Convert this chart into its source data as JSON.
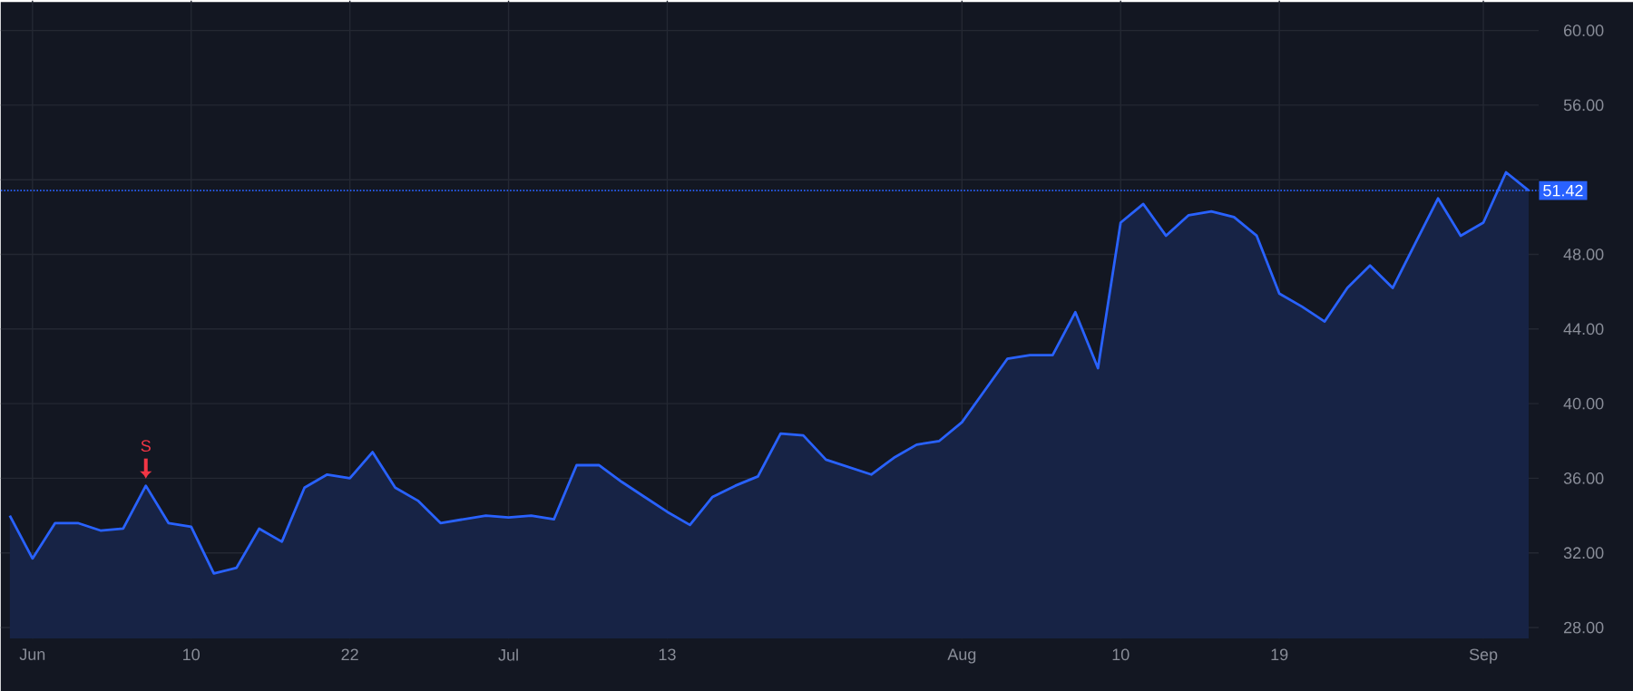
{
  "chart_data": {
    "type": "area",
    "categories": [
      null,
      "Jun",
      null,
      null,
      null,
      null,
      null,
      null,
      "10",
      null,
      null,
      null,
      null,
      null,
      null,
      "22",
      null,
      null,
      null,
      null,
      null,
      null,
      "Jul",
      null,
      null,
      null,
      null,
      null,
      null,
      "13",
      null,
      null,
      null,
      null,
      null,
      null,
      null,
      null,
      null,
      null,
      null,
      null,
      "Aug",
      null,
      null,
      null,
      null,
      null,
      null,
      "10",
      null,
      null,
      null,
      null,
      null,
      null,
      "19",
      null,
      null,
      null,
      null,
      null,
      null,
      null,
      null,
      "Sep",
      null,
      null
    ],
    "series": [
      {
        "color": "#2962ff",
        "values": [
          34.0,
          31.7,
          33.6,
          33.6,
          33.2,
          33.3,
          35.6,
          33.6,
          33.4,
          30.9,
          31.2,
          33.3,
          32.6,
          35.5,
          36.2,
          36.0,
          37.4,
          35.5,
          34.8,
          33.6,
          33.8,
          34.0,
          33.9,
          34.0,
          33.8,
          36.7,
          36.7,
          35.8,
          35.0,
          34.2,
          33.5,
          35.0,
          35.6,
          36.1,
          38.4,
          38.3,
          37.0,
          36.6,
          36.2,
          37.1,
          37.8,
          38.0,
          39.0,
          40.7,
          42.4,
          42.6,
          42.6,
          44.9,
          41.9,
          49.7,
          50.7,
          49.0,
          50.1,
          50.3,
          50.0,
          49.0,
          45.9,
          45.2,
          44.4,
          46.2,
          47.4,
          46.2,
          48.6,
          51.0,
          49.0,
          49.7,
          52.4,
          51.42
        ]
      }
    ],
    "ylim": [
      27.4,
      61.6
    ],
    "yticks": [
      {
        "value": 28,
        "label": "28.00"
      },
      {
        "value": 32,
        "label": "32.00"
      },
      {
        "value": 36,
        "label": "36.00"
      },
      {
        "value": 40,
        "label": "40.00"
      },
      {
        "value": 44,
        "label": "44.00"
      },
      {
        "value": 48,
        "label": "48.00"
      },
      {
        "value": 52,
        "label": null
      },
      {
        "value": 56,
        "label": "56.00"
      },
      {
        "value": 60,
        "label": "60.00"
      }
    ],
    "ref_lines": [
      {
        "axis": "y",
        "value": 51.42,
        "label": "51.42",
        "color": "#2962ff",
        "line_style": "dotted"
      }
    ],
    "annotations": [
      {
        "text": "S",
        "y": 35.6
      }
    ],
    "grid": true
  }
}
